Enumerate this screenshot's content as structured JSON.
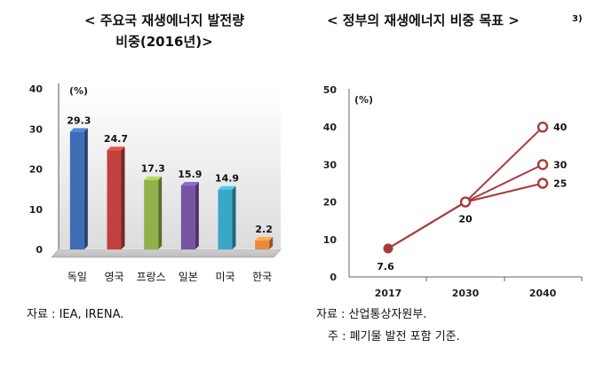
{
  "chart_data": [
    {
      "type": "bar",
      "title": "< 주요국 재생에너지 발전량",
      "subtitle": "비중(2016년)>",
      "unit": "(%)",
      "ylim": [
        0,
        40
      ],
      "yticks": [
        "0",
        "10",
        "20",
        "30",
        "40"
      ],
      "categories": [
        "독일",
        "영국",
        "프랑스",
        "일본",
        "미국",
        "한국"
      ],
      "values": [
        29.3,
        24.7,
        17.3,
        15.9,
        14.9,
        2.2
      ],
      "value_labels": [
        "29.3",
        "24.7",
        "17.3",
        "15.9",
        "14.9",
        "2.2"
      ],
      "colors": [
        "#3f6cb5",
        "#c0413d",
        "#93b14a",
        "#7654a3",
        "#3aa7c4",
        "#e88a3c"
      ],
      "source": "자료 : IEA, IRENA."
    },
    {
      "type": "line",
      "title": "< 정부의 재생에너지 비중 목표 >",
      "title_note": "3)",
      "unit": "(%)",
      "ylim": [
        0,
        50
      ],
      "yticks": [
        "0",
        "10",
        "20",
        "30",
        "40",
        "50"
      ],
      "x": [
        "2017",
        "2030",
        "2040"
      ],
      "series": [
        {
          "values": [
            7.6,
            20,
            40
          ]
        },
        {
          "values": [
            7.6,
            20,
            30
          ]
        },
        {
          "values": [
            7.6,
            20,
            25
          ]
        }
      ],
      "point_labels": [
        "7.6",
        "20",
        "40",
        "30",
        "25"
      ],
      "line_color": "#a83a3a",
      "source": "자료 : 산업통상자원부.",
      "note": "주 : 폐기물 발전 포함 기준."
    }
  ]
}
